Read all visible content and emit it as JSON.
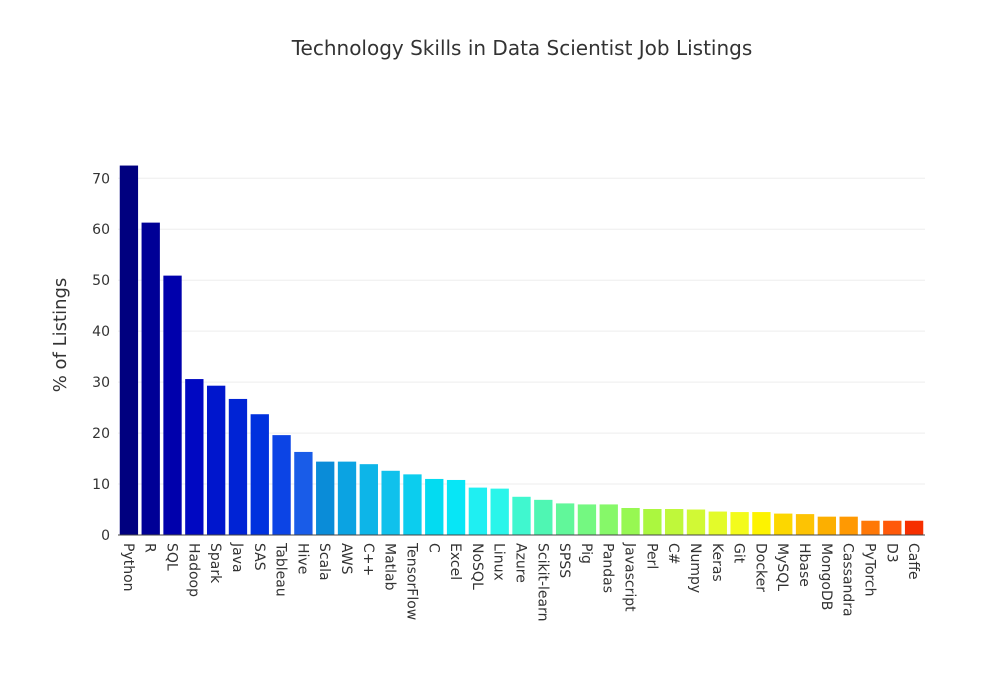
{
  "chart_data": {
    "type": "bar",
    "title": "Technology Skills in Data Scientist Job Listings",
    "xlabel": "",
    "ylabel": "% of Listings",
    "ylim": [
      0,
      73
    ],
    "yticks": [
      0,
      10,
      20,
      30,
      40,
      50,
      60,
      70
    ],
    "grid": true,
    "legend": "none",
    "categories": [
      "Python",
      "R",
      "SQL",
      "Hadoop",
      "Spark",
      "Java",
      "SAS",
      "Tableau",
      "Hive",
      "Scala",
      "AWS",
      "C++",
      "Matlab",
      "TensorFlow",
      "C",
      "Excel",
      "NoSQL",
      "Linux",
      "Azure",
      "Scikit-learn",
      "SPSS",
      "Pig",
      "Pandas",
      "Javascript",
      "Perl",
      "C#",
      "Numpy",
      "Keras",
      "Git",
      "Docker",
      "MySQL",
      "Hbase",
      "MongoDB",
      "Cassandra",
      "PyTorch",
      "D3",
      "Caffe"
    ],
    "values": [
      72.5,
      61.3,
      50.9,
      30.6,
      29.3,
      26.7,
      23.7,
      19.6,
      16.3,
      14.4,
      14.4,
      13.9,
      12.6,
      11.9,
      11.0,
      10.8,
      9.3,
      9.1,
      7.5,
      6.9,
      6.2,
      6.0,
      6.0,
      5.3,
      5.1,
      5.1,
      5.0,
      4.6,
      4.5,
      4.5,
      4.2,
      4.1,
      3.6,
      3.6,
      2.8,
      2.8,
      2.8
    ],
    "colors": [
      "#00007f",
      "#000096",
      "#0000ac",
      "#0008c2",
      "#0016cd",
      "#0023d5",
      "#0031de",
      "#0c44e5",
      "#195ce8",
      "#0a8cd8",
      "#0ba3e2",
      "#0db5e8",
      "#10c1ec",
      "#0ccdee",
      "#03dbf1",
      "#07e6f6",
      "#1feff2",
      "#2af5ea",
      "#40f7cf",
      "#4ff6b3",
      "#61f79a",
      "#74f881",
      "#86f869",
      "#97f852",
      "#abf73f",
      "#bff83a",
      "#d1f935",
      "#e3fb2a",
      "#f3fb1c",
      "#fdf300",
      "#fcd700",
      "#fdc303",
      "#fcaf00",
      "#ff9902",
      "#ff7807",
      "#ff5909",
      "#f62f00"
    ]
  }
}
